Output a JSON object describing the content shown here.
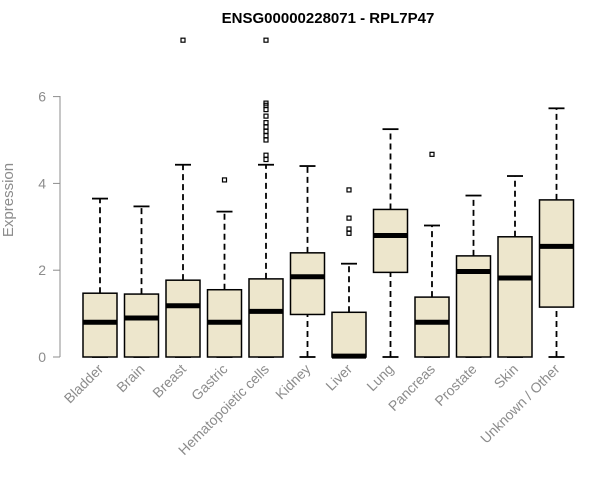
{
  "chart_data": {
    "type": "box",
    "title": "ENSG00000228071 - RPL7P47",
    "ylabel": "Expression",
    "xlabel": "",
    "ylim": [
      0,
      7.4
    ],
    "yticks": [
      0,
      2,
      4,
      6
    ],
    "grid": false,
    "colors": {
      "box_fill": "#ede6cc",
      "axis": "#8c8c8c"
    },
    "categories": [
      "Bladder",
      "Brain",
      "Breast",
      "Gastric",
      "Hematopoietic cells",
      "Kidney",
      "Liver",
      "Lung",
      "Pancreas",
      "Prostate",
      "Skin",
      "Unknown / Other"
    ],
    "boxes": [
      {
        "name": "Bladder",
        "min": 0,
        "q1": 0,
        "median": 0.8,
        "q3": 1.47,
        "max": 3.65,
        "outliers": []
      },
      {
        "name": "Brain",
        "min": 0,
        "q1": 0,
        "median": 0.9,
        "q3": 1.45,
        "max": 3.47,
        "outliers": []
      },
      {
        "name": "Breast",
        "min": 0,
        "q1": 0,
        "median": 1.18,
        "q3": 1.77,
        "max": 4.43,
        "outliers": [
          7.3
        ]
      },
      {
        "name": "Gastric",
        "min": 0,
        "q1": 0,
        "median": 0.8,
        "q3": 1.55,
        "max": 3.35,
        "outliers": [
          4.08
        ]
      },
      {
        "name": "Hematopoietic cells",
        "min": 0,
        "q1": 0,
        "median": 1.05,
        "q3": 1.8,
        "max": 4.43,
        "outliers": [
          4.55,
          4.65,
          5.0,
          5.1,
          5.2,
          5.3,
          5.4,
          5.55,
          5.7,
          5.8,
          5.85,
          7.3
        ]
      },
      {
        "name": "Kidney",
        "min": 0,
        "q1": 0.98,
        "median": 1.85,
        "q3": 2.4,
        "max": 4.4,
        "outliers": []
      },
      {
        "name": "Liver",
        "min": 0,
        "q1": 0,
        "median": 0.02,
        "q3": 1.03,
        "max": 2.15,
        "outliers": [
          2.85,
          2.95,
          3.2,
          3.85
        ]
      },
      {
        "name": "Lung",
        "min": 0,
        "q1": 1.95,
        "median": 2.8,
        "q3": 3.4,
        "max": 5.25,
        "outliers": []
      },
      {
        "name": "Pancreas",
        "min": 0,
        "q1": 0,
        "median": 0.8,
        "q3": 1.38,
        "max": 3.03,
        "outliers": [
          4.67
        ]
      },
      {
        "name": "Prostate",
        "min": 0,
        "q1": 0,
        "median": 1.97,
        "q3": 2.33,
        "max": 3.72,
        "outliers": []
      },
      {
        "name": "Skin",
        "min": 0,
        "q1": 0,
        "median": 1.82,
        "q3": 2.77,
        "max": 4.17,
        "outliers": []
      },
      {
        "name": "Unknown / Other",
        "min": 0,
        "q1": 1.15,
        "median": 2.55,
        "q3": 3.62,
        "max": 5.73,
        "outliers": []
      }
    ]
  }
}
